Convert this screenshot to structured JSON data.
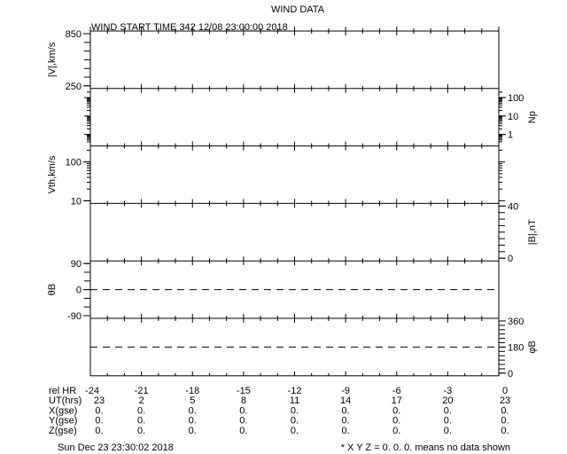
{
  "title": "WIND DATA",
  "subtitle": "WIND START TIME 342 12/08 23:00:00 2018",
  "footer_left": "Sun Dec 23 23:30:02 2018",
  "footer_right": "* X Y Z = 0. 0. 0. means no data shown",
  "chart_data": [
    {
      "type": "line",
      "ylabel": "|V|,km/s",
      "axis_side": "left",
      "scale": "linear",
      "ylim": [
        250,
        850
      ],
      "tick_labels": [
        "850",
        "250"
      ],
      "tick_values": [
        850,
        250
      ],
      "minor_step": 100,
      "series": []
    },
    {
      "type": "line",
      "ylabel": "Np",
      "axis_side": "right",
      "scale": "log",
      "ylim": [
        0.33,
        224
      ],
      "tick_labels": [
        "100",
        "10",
        "1"
      ],
      "tick_values": [
        100,
        10,
        1
      ],
      "series": []
    },
    {
      "type": "line",
      "ylabel": "Vth,km/s",
      "axis_side": "left",
      "scale": "log",
      "ylim": [
        10,
        220
      ],
      "tick_labels": [
        "100",
        "10"
      ],
      "tick_values": [
        100,
        10
      ],
      "series": []
    },
    {
      "type": "line",
      "ylabel": "|B|,nT",
      "axis_side": "right",
      "scale": "linear",
      "ylim": [
        0,
        40
      ],
      "tick_labels": [
        "40",
        "0"
      ],
      "tick_values": [
        40,
        0
      ],
      "minor_step": 5,
      "series": []
    },
    {
      "type": "line",
      "ylabel": "θB",
      "axis_side": "left",
      "scale": "linear",
      "ylim": [
        -90,
        90
      ],
      "tick_labels": [
        "90",
        "0",
        "-90"
      ],
      "tick_values": [
        90,
        0,
        -90
      ],
      "minor_step": 30,
      "reference_line": 0,
      "series": []
    },
    {
      "type": "line",
      "ylabel": "φB",
      "axis_side": "right",
      "scale": "linear",
      "ylim": [
        0,
        360
      ],
      "tick_labels": [
        "360",
        "180",
        "0"
      ],
      "tick_values": [
        360,
        180,
        0
      ],
      "minor_step": 30,
      "reference_line": 180,
      "series": []
    }
  ],
  "x_axis": {
    "xlim": [
      -24,
      0
    ],
    "rows": [
      {
        "label": "rel HR",
        "values": [
          "-24",
          "-21",
          "-18",
          "-15",
          "-12",
          "-9",
          "-6",
          "-3",
          "0"
        ]
      },
      {
        "label": "UT(hrs)",
        "values": [
          "23",
          "2",
          "5",
          "8",
          "11",
          "14",
          "17",
          "20",
          "23"
        ]
      },
      {
        "label": "X(gse)",
        "values": [
          "0.",
          "0.",
          "0.",
          "0.",
          "0.",
          "0.",
          "0.",
          "0.",
          "0."
        ]
      },
      {
        "label": "Y(gse)",
        "values": [
          "0.",
          "0.",
          "0.",
          "0.",
          "0.",
          "0.",
          "0.",
          "0.",
          "0."
        ]
      },
      {
        "label": "Z(gse)",
        "values": [
          "0.",
          "0.",
          "0.",
          "0.",
          "0.",
          "0.",
          "0.",
          "0.",
          "0."
        ]
      }
    ]
  }
}
